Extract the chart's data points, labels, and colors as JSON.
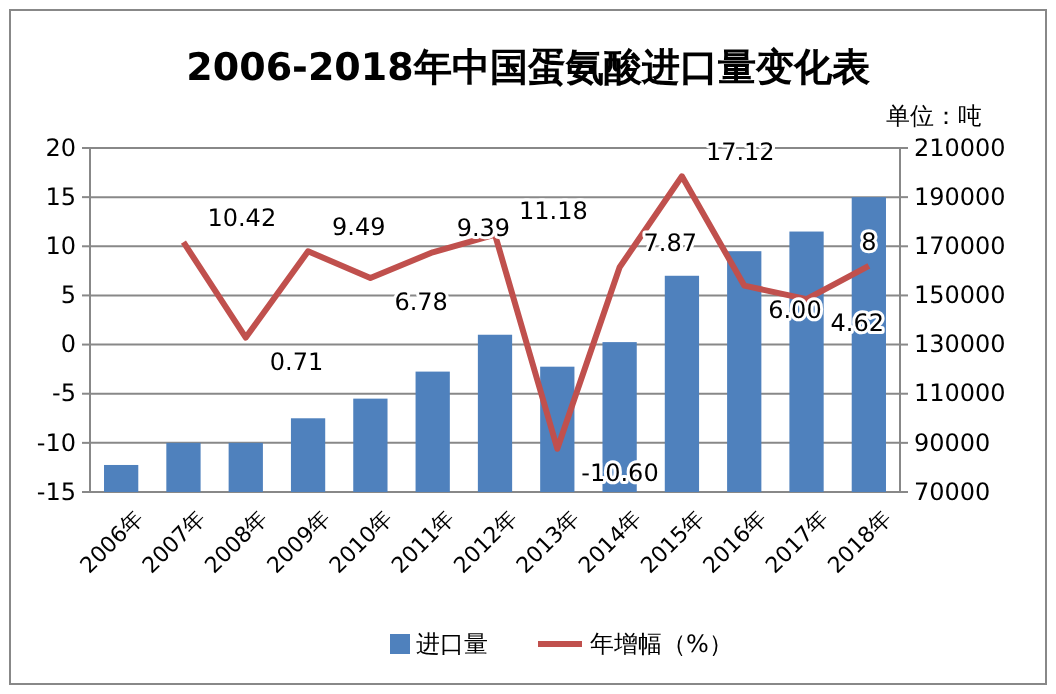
{
  "chart_data": {
    "type": "bar",
    "title": "2006-2018年中国蛋氨酸进口量变化表",
    "y2label": "单位：吨",
    "categories": [
      "2006年",
      "2007年",
      "2008年",
      "2009年",
      "2010年",
      "2011年",
      "2012年",
      "2013年",
      "2014年",
      "2015年",
      "2016年",
      "2017年",
      "2018年"
    ],
    "series": [
      {
        "name": "进口量",
        "axis": "y2",
        "color": "#4f81bd",
        "values": [
          81000,
          90000,
          90000,
          100000,
          108000,
          119000,
          134000,
          121000,
          131000,
          158000,
          168000,
          176000,
          190000
        ]
      },
      {
        "name": "年增幅（%）",
        "type": "line",
        "color": "#c0504d",
        "values": [
          null,
          10.42,
          0.71,
          9.49,
          6.78,
          9.39,
          11.18,
          -10.6,
          7.87,
          17.12,
          6.0,
          4.62,
          8
        ],
        "value_labels": [
          null,
          "10.42",
          "0.71",
          "9.49",
          "6.78",
          "9.39",
          "11.18",
          "-10.60",
          "7.87",
          "17.12",
          "6.00",
          "4.62",
          "8"
        ]
      }
    ],
    "ylim": [
      -15,
      20
    ],
    "yticks": [
      -15,
      -10,
      -5,
      0,
      5,
      10,
      15,
      20
    ],
    "y2lim": [
      70000,
      210000
    ],
    "y2ticks": [
      70000,
      90000,
      110000,
      130000,
      150000,
      170000,
      190000,
      210000
    ],
    "grid": "y",
    "legend": "bottom",
    "marker": "none",
    "line_style": "solid"
  }
}
